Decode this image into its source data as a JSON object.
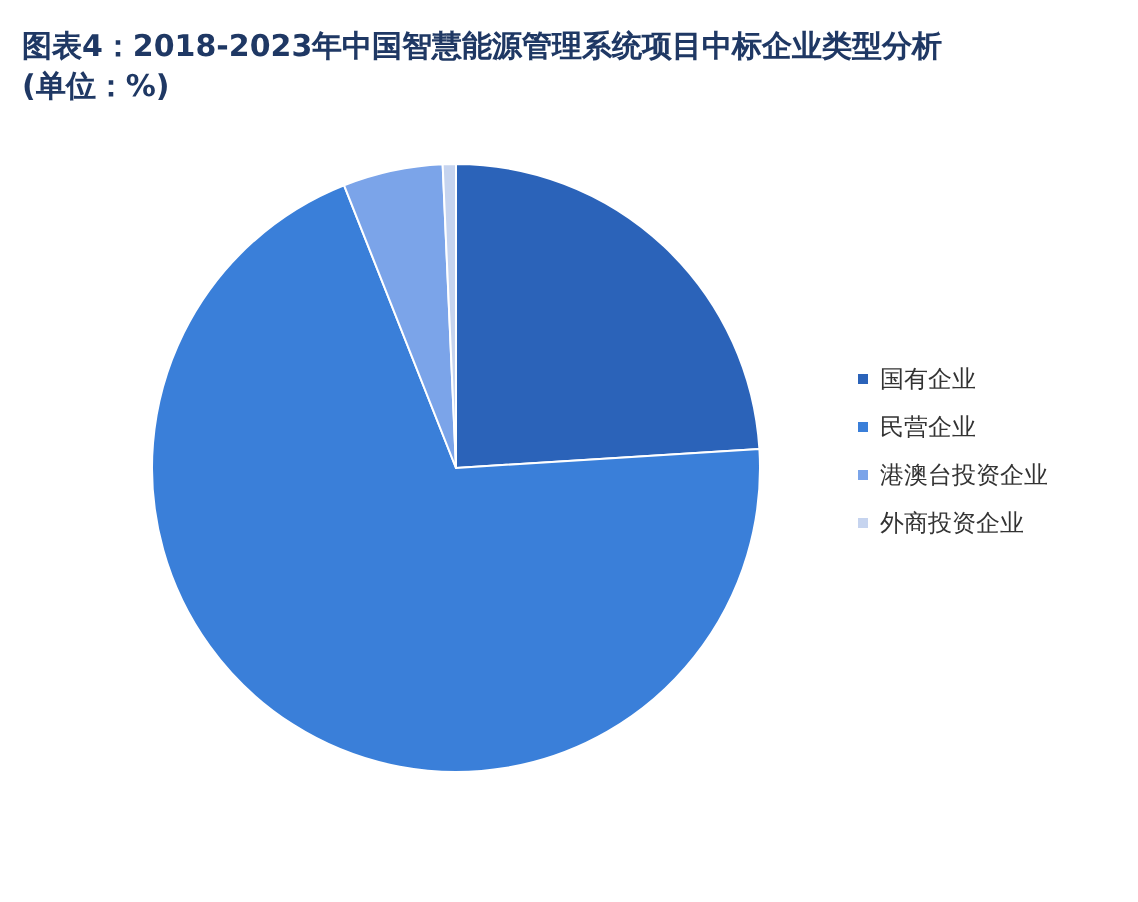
{
  "chart_data": {
    "type": "pie",
    "title": "图表4：2018-2023年中国智慧能源管理系统项目中标企业类型分析(单位：%)",
    "categories": [
      "国有企业",
      "民营企业",
      "港澳台投资企业",
      "外商投资企业"
    ],
    "values": [
      24,
      70,
      5.3,
      0.7
    ],
    "colors": [
      "#2b63b9",
      "#3a7fd9",
      "#7ba4e9",
      "#c6d4ef"
    ],
    "legend": "right"
  }
}
